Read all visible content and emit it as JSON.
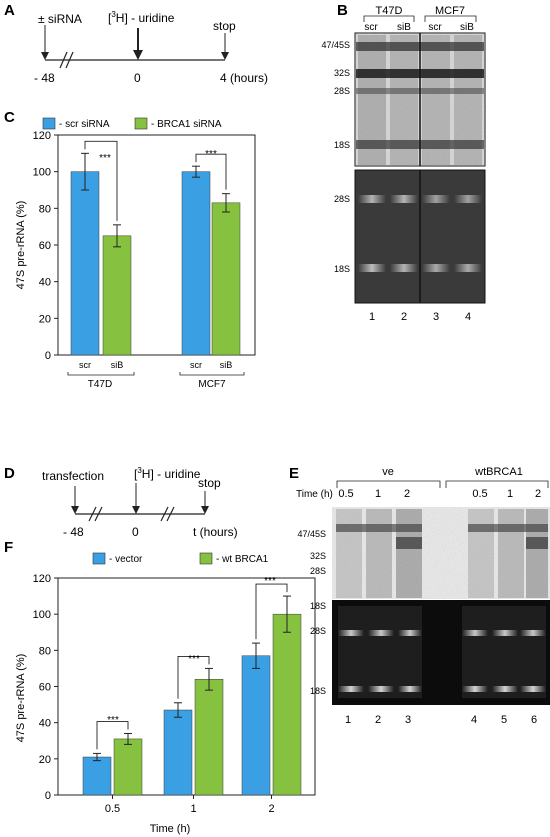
{
  "colors": {
    "blue": "#3a9fe3",
    "green": "#86c13f",
    "gel_dark": "#0c0c0c",
    "blot_light": "#e6e6e6"
  },
  "panel_a": {
    "letter": "A",
    "sirna_label": "± siRNA",
    "uridine_label_pre": "[",
    "uridine_label_sup": "3",
    "uridine_label_post": "H] - uridine",
    "stop_label": "stop",
    "times": [
      "- 48",
      "0",
      "4 (hours)"
    ]
  },
  "panel_b": {
    "letter": "B",
    "groups": [
      "T47D",
      "MCF7"
    ],
    "lanes": [
      "scr",
      "siB",
      "scr",
      "siB"
    ],
    "top_markers": [
      "47/45S",
      "32S",
      "28S",
      "18S"
    ],
    "bottom_markers": [
      "28S",
      "18S"
    ],
    "lane_numbers": [
      "1",
      "2",
      "3",
      "4"
    ]
  },
  "panel_c": {
    "letter": "C",
    "legend": [
      "- scr siRNA",
      "- BRCA1 siRNA"
    ],
    "ylabel": "47S pre-rRNA (%)",
    "sig": [
      "***",
      "***"
    ],
    "groups": [
      "T47D",
      "MCF7"
    ],
    "bar_labels": [
      "scr",
      "siB",
      "scr",
      "siB"
    ]
  },
  "panel_d": {
    "letter": "D",
    "transfection_label": "transfection",
    "uridine_label_pre": "[",
    "uridine_label_sup": "3",
    "uridine_label_post": "H] - uridine",
    "stop_label": "stop",
    "times": [
      "- 48",
      "0",
      "t (hours)"
    ]
  },
  "panel_e": {
    "letter": "E",
    "groups": [
      "ve",
      "wtBRCA1"
    ],
    "time_label": "Time (h)",
    "time_points": [
      "0.5",
      "1",
      "2",
      "0.5",
      "1",
      "2"
    ],
    "top_markers": [
      "47/45S",
      "32S",
      "28S",
      "18S"
    ],
    "bottom_markers": [
      "28S",
      "18S"
    ],
    "lane_numbers": [
      "1",
      "2",
      "3",
      "4",
      "5",
      "6"
    ]
  },
  "panel_f": {
    "letter": "F",
    "legend": [
      "- vector",
      "- wt BRCA1"
    ],
    "ylabel": "47S pre-rRNA (%)",
    "xlabel": "Time (h)",
    "sig": [
      "***",
      "***",
      "***"
    ]
  },
  "chart_data": [
    {
      "type": "bar",
      "panel": "C",
      "categories": [
        "T47D",
        "MCF7"
      ],
      "series": [
        {
          "name": "- scr siRNA",
          "values": [
            100,
            100
          ],
          "errors": [
            10,
            3
          ]
        },
        {
          "name": "- BRCA1 siRNA",
          "values": [
            65,
            83
          ],
          "errors": [
            6,
            5
          ]
        }
      ],
      "ylabel": "47S pre-rRNA (%)",
      "ylim": [
        0,
        120
      ],
      "yticks": [
        0,
        20,
        40,
        60,
        80,
        100,
        120
      ],
      "legend": "top"
    },
    {
      "type": "bar",
      "panel": "F",
      "categories": [
        "0.5",
        "1",
        "2"
      ],
      "series": [
        {
          "name": "- vector",
          "values": [
            21,
            47,
            77
          ],
          "errors": [
            2,
            4,
            7
          ]
        },
        {
          "name": "- wt BRCA1",
          "values": [
            31,
            64,
            100
          ],
          "errors": [
            3,
            6,
            10
          ]
        }
      ],
      "xlabel": "Time (h)",
      "ylabel": "47S pre-rRNA (%)",
      "ylim": [
        0,
        120
      ],
      "yticks": [
        0,
        20,
        40,
        60,
        80,
        100,
        120
      ],
      "legend": "top"
    }
  ]
}
